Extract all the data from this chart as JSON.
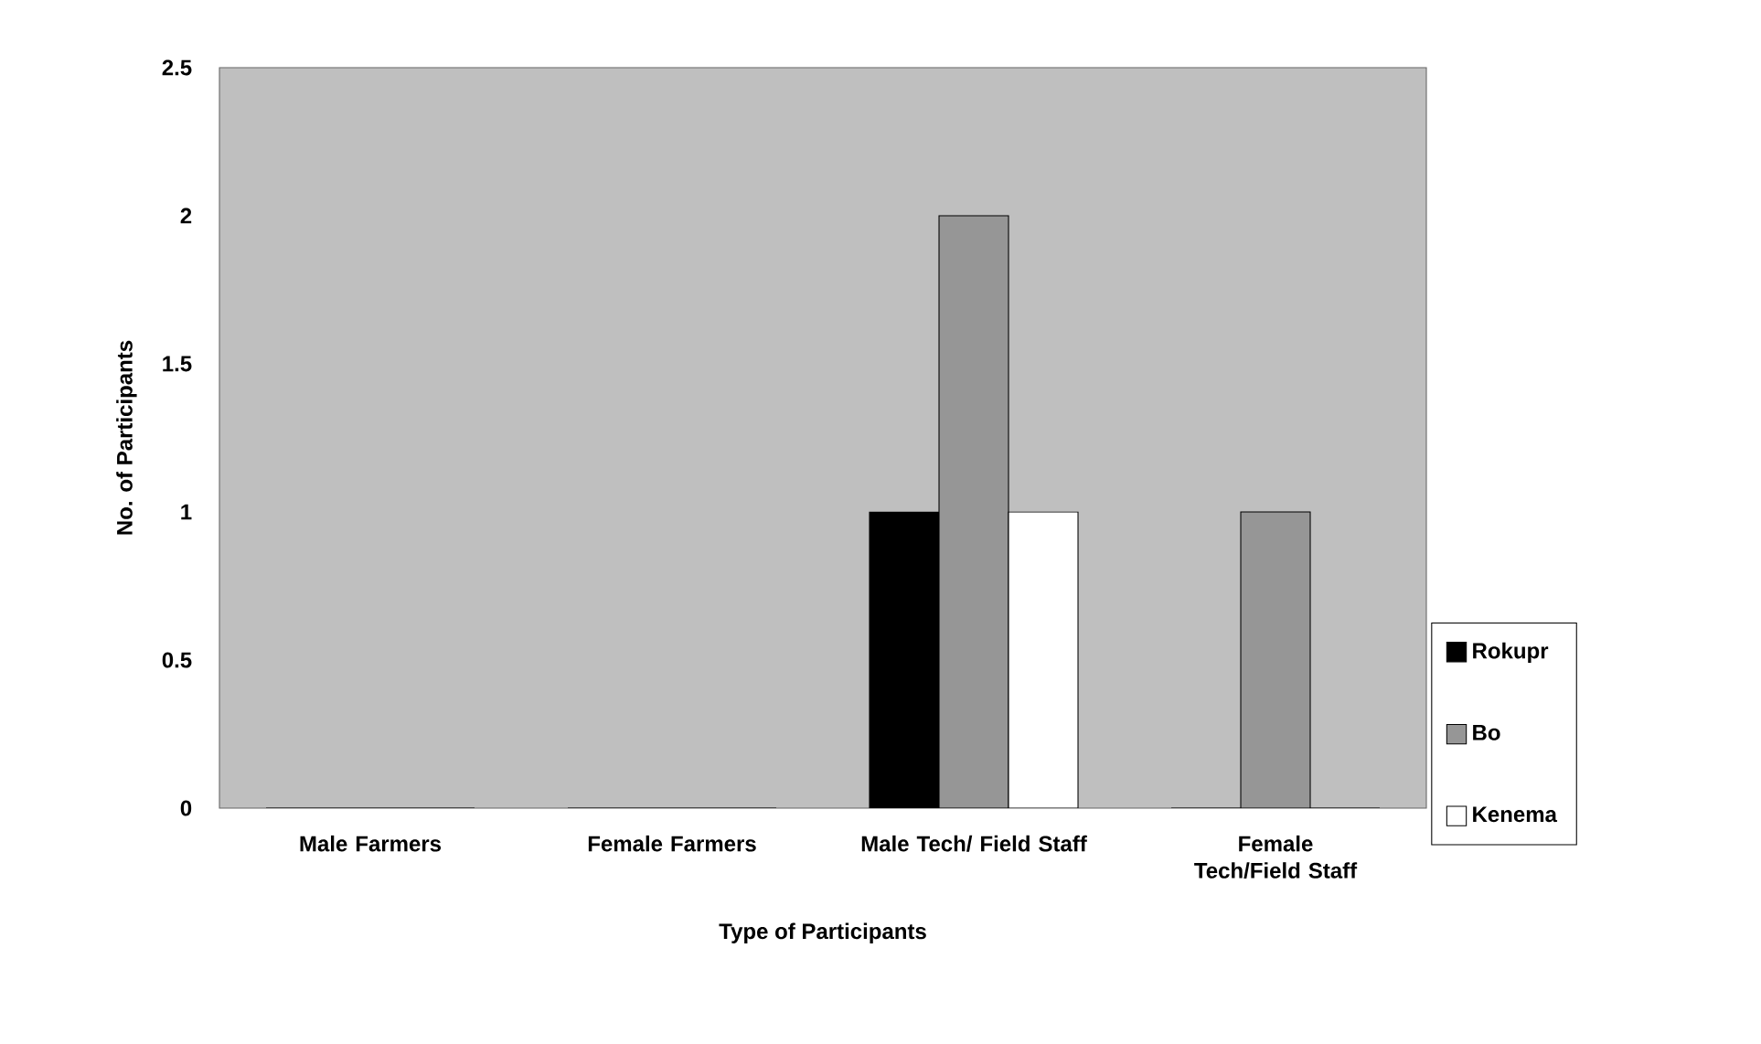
{
  "chart_data": {
    "type": "bar",
    "xlabel": "Type of Participants",
    "ylabel": "No. of Participants",
    "categories": [
      "Male Farmers",
      "Female Farmers",
      "Male Tech/ Field Staff",
      "Female Tech/Field Staff"
    ],
    "series": [
      {
        "name": "Rokupr",
        "color": "#000000",
        "values": [
          0,
          0,
          1,
          0
        ]
      },
      {
        "name": "Bo",
        "color": "#969696",
        "values": [
          0,
          0,
          2,
          1
        ]
      },
      {
        "name": "Kenema",
        "color": "#ffffff",
        "values": [
          0,
          0,
          1,
          0
        ]
      }
    ],
    "ylim": [
      0,
      2.5
    ],
    "yticks": [
      0,
      0.5,
      1,
      1.5,
      2,
      2.5
    ],
    "legend": "right",
    "grid": false
  }
}
